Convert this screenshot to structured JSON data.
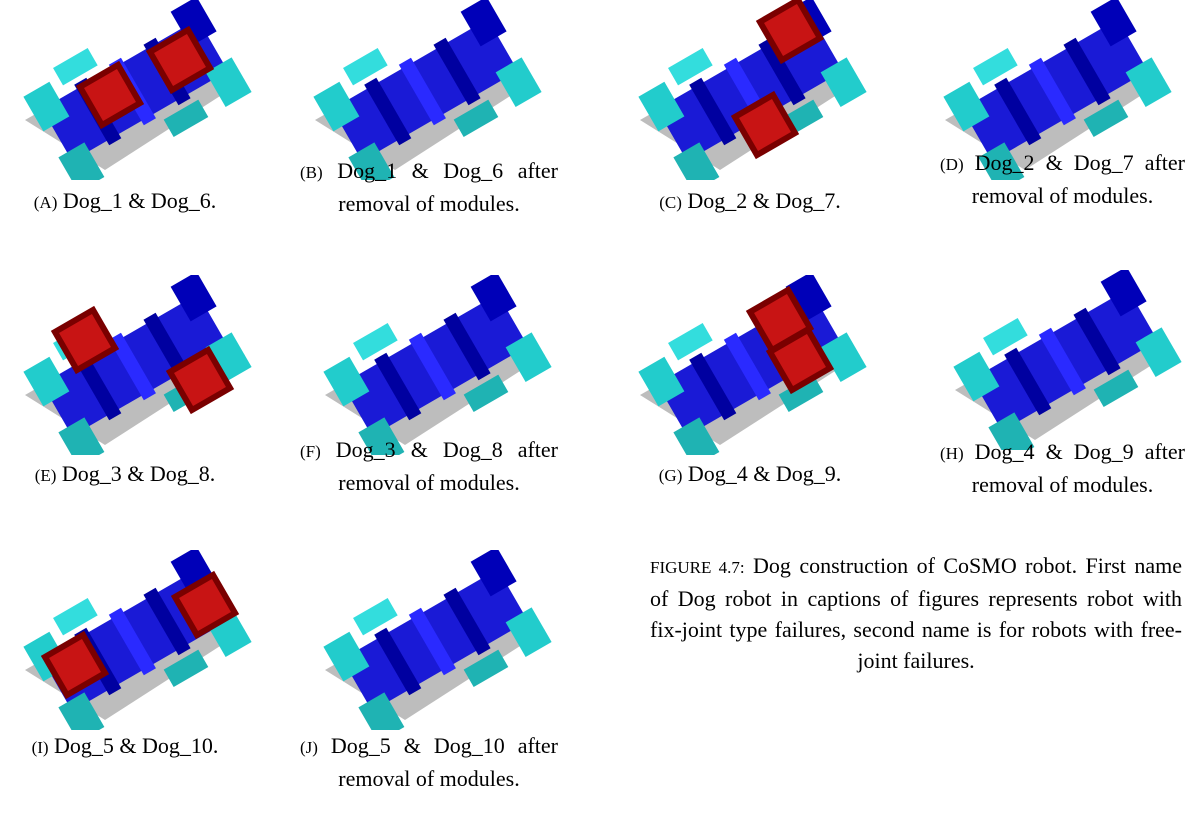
{
  "subfigures": [
    {
      "label": "(A)",
      "caption": "Dog_1 & Dog_6."
    },
    {
      "label": "(B)",
      "caption": "Dog_1 & Dog_6 after removal of modules."
    },
    {
      "label": "(C)",
      "caption": "Dog_2 & Dog_7."
    },
    {
      "label": "(D)",
      "caption": "Dog_2 & Dog_7 after removal of modules."
    },
    {
      "label": "(E)",
      "caption": "Dog_3 & Dog_8."
    },
    {
      "label": "(F)",
      "caption": "Dog_3 & Dog_8 after removal of modules."
    },
    {
      "label": "(G)",
      "caption": "Dog_4 & Dog_9."
    },
    {
      "label": "(H)",
      "caption": "Dog_4 & Dog_9 after removal of modules."
    },
    {
      "label": "(I)",
      "caption": "Dog_5 & Dog_10."
    },
    {
      "label": "(J)",
      "caption": "Dog_5 & Dog_10 after removal of modules."
    }
  ],
  "figure": {
    "label": "FIGURE 4.7:",
    "caption": "Dog construction of CoSMO robot. First name of Dog robot in captions of figures represents robot with fix-joint type failures, second name is for robots with free-joint failures."
  }
}
